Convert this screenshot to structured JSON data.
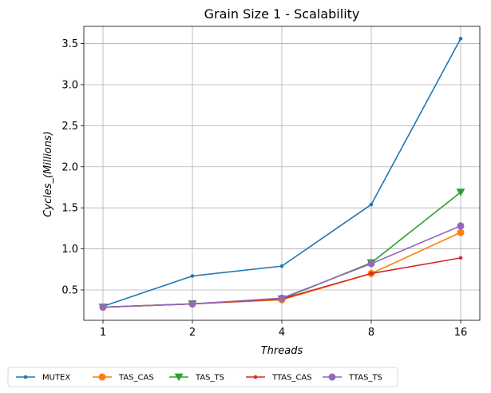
{
  "chart_data": {
    "type": "line",
    "title": "Grain Size 1 - Scalability",
    "xlabel": "Threads",
    "ylabel": "Cycles_(Millions)",
    "categories": [
      "1",
      "2",
      "4",
      "8",
      "16"
    ],
    "ylim": [
      0.13,
      3.71
    ],
    "yticks": [
      0.5,
      1.0,
      1.5,
      2.0,
      2.5,
      3.0,
      3.5
    ],
    "ytick_labels": [
      "0.5",
      "1.0",
      "1.5",
      "2.0",
      "2.5",
      "3.0",
      "3.5"
    ],
    "grid": true,
    "legend_position": "bottom",
    "series": [
      {
        "name": "MUTEX",
        "color": "#1f77b4",
        "marker": "point",
        "values": [
          0.3,
          0.67,
          0.79,
          1.54,
          3.56
        ]
      },
      {
        "name": "TAS_CAS",
        "color": "#ff7f0e",
        "marker": "circle",
        "values": [
          0.29,
          0.33,
          0.38,
          0.7,
          1.2
        ]
      },
      {
        "name": "TAS_TS",
        "color": "#2ca02c",
        "marker": "triangle-down",
        "values": [
          0.29,
          0.33,
          0.39,
          0.83,
          1.69
        ]
      },
      {
        "name": "TTAS_CAS",
        "color": "#d62728",
        "marker": "point",
        "values": [
          0.29,
          0.33,
          0.39,
          0.7,
          0.89
        ]
      },
      {
        "name": "TTAS_TS",
        "color": "#9467bd",
        "marker": "circle",
        "values": [
          0.29,
          0.33,
          0.4,
          0.82,
          1.28
        ]
      }
    ]
  }
}
